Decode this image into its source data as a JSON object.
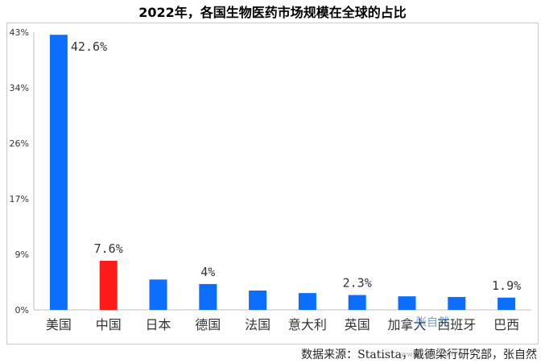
{
  "chart_data": {
    "type": "bar",
    "title": "2022年，各国生物医药市场规模在全球的占比",
    "categories": [
      "美国",
      "中国",
      "日本",
      "德国",
      "法国",
      "意大利",
      "英国",
      "加拿大",
      "西班牙",
      "巴西"
    ],
    "values": [
      42.6,
      7.6,
      4.7,
      4.0,
      3.0,
      2.6,
      2.3,
      2.1,
      2.0,
      1.9
    ],
    "data_labels": [
      "42.6%",
      "7.6%",
      "",
      "4%",
      "",
      "",
      "2.3%",
      "",
      "",
      "1.9%"
    ],
    "yticks": [
      "0%",
      "9%",
      "17%",
      "26%",
      "34%",
      "43%"
    ],
    "ylim": [
      0,
      43
    ],
    "bar_colors": [
      "#0d6efd",
      "#ff1a1a",
      "#0d6efd",
      "#0d6efd",
      "#0d6efd",
      "#0d6efd",
      "#0d6efd",
      "#0d6efd",
      "#0d6efd",
      "#0d6efd"
    ],
    "grid": false,
    "source": "数据来源：Statista，戴德梁行研究部，张自然",
    "watermark": "张自然",
    "watermark_site": "www.xgbjl.com"
  }
}
